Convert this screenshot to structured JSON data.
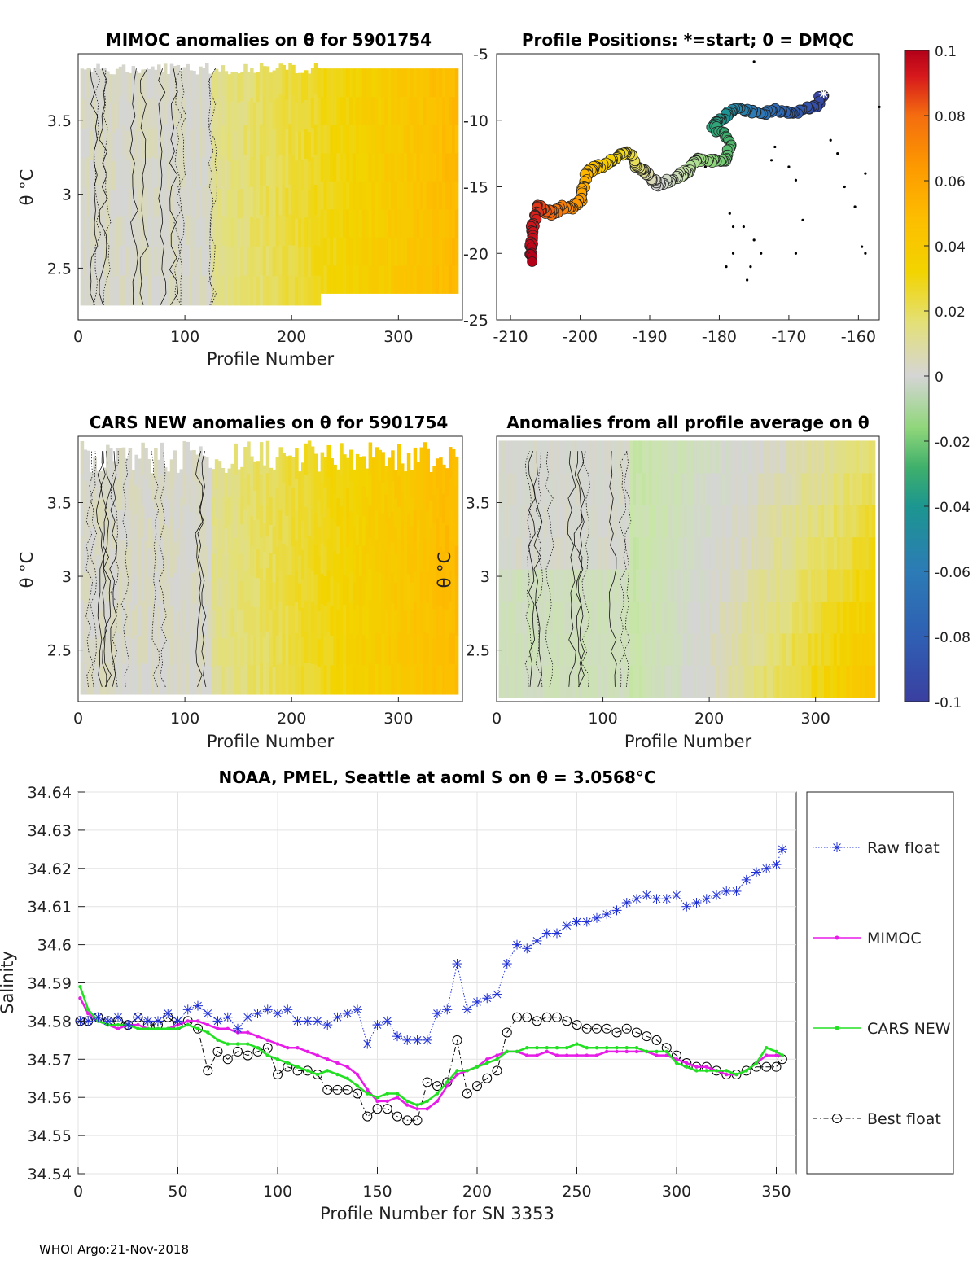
{
  "footer": "WHOI Argo:21-Nov-2018",
  "colorbar": {
    "min": -0.1,
    "max": 0.1,
    "ticks": [
      "0.1",
      "0.08",
      "0.06",
      "0.04",
      "0.02",
      "0",
      "-0.02",
      "-0.04",
      "-0.06",
      "-0.08",
      "-0.1"
    ],
    "colors": [
      "#b30019",
      "#d7191c",
      "#f46d0f",
      "#fd9a00",
      "#fdbe00",
      "#f2d400",
      "#e3e07a",
      "#d5d5d5",
      "#c9e6a8",
      "#8fd67a",
      "#3fb06b",
      "#1c9690",
      "#2c7bb6",
      "#2f5fb3",
      "#3a3fa0"
    ]
  },
  "charts": {
    "mimoc": {
      "title": "MIMOC anomalies on θ  for 5901754",
      "xlabel": "Profile Number",
      "ylabel": "θ °C",
      "xlim": [
        0,
        360
      ],
      "ylim": [
        2.15,
        3.95
      ],
      "xticks": [
        "0",
        "100",
        "200",
        "300"
      ],
      "yticks": [
        "2.5",
        "3",
        "3.5"
      ],
      "anomaly_trend": {
        "start": 0.0,
        "end": 0.045
      }
    },
    "positions": {
      "title": "Profile Positions: *=start; 0 = DMQC",
      "xlim": [
        -212,
        -157
      ],
      "ylim": [
        -25,
        -5
      ],
      "xticks": [
        "-210",
        "-200",
        "-190",
        "-180",
        "-170",
        "-160"
      ],
      "yticks": [
        "-5",
        "-10",
        "-15",
        "-20",
        "-25"
      ],
      "track": [
        [
          -165,
          -8
        ],
        [
          -166,
          -8.8
        ],
        [
          -168,
          -9.2
        ],
        [
          -170,
          -9.5
        ],
        [
          -172,
          -9.3
        ],
        [
          -174,
          -9.5
        ],
        [
          -176,
          -9.3
        ],
        [
          -178,
          -9.2
        ],
        [
          -179,
          -9.6
        ],
        [
          -180,
          -10
        ],
        [
          -181,
          -10.5
        ],
        [
          -179,
          -11
        ],
        [
          -178.5,
          -12
        ],
        [
          -179,
          -13
        ],
        [
          -181,
          -13
        ],
        [
          -183,
          -13
        ],
        [
          -184,
          -13.5
        ],
        [
          -185,
          -14
        ],
        [
          -186,
          -14.2
        ],
        [
          -187.5,
          -14.6
        ],
        [
          -189,
          -14.8
        ],
        [
          -190,
          -14.2
        ],
        [
          -191,
          -13.8
        ],
        [
          -192,
          -13.5
        ],
        [
          -192.5,
          -12.5
        ],
        [
          -194,
          -12.5
        ],
        [
          -195.5,
          -13
        ],
        [
          -197,
          -13.5
        ],
        [
          -198,
          -13.5
        ],
        [
          -199,
          -14
        ],
        [
          -199.5,
          -15
        ],
        [
          -200,
          -16
        ],
        [
          -201,
          -16.5
        ],
        [
          -202.5,
          -16.5
        ],
        [
          -204,
          -17
        ],
        [
          -205,
          -16.8
        ],
        [
          -206,
          -16.5
        ],
        [
          -206.5,
          -17.5
        ],
        [
          -207,
          -18.5
        ],
        [
          -207,
          -19.5
        ],
        [
          -207,
          -20.5
        ]
      ],
      "stations": [
        [
          -157,
          -9
        ],
        [
          -159,
          -20
        ],
        [
          -159.5,
          -19.5
        ],
        [
          -168,
          -17.5
        ],
        [
          -169,
          -20
        ],
        [
          -169,
          -14.5
        ],
        [
          -170,
          -13.5
        ],
        [
          -172,
          -12
        ],
        [
          -172.5,
          -13
        ],
        [
          -174,
          -20
        ],
        [
          -175,
          -19
        ],
        [
          -175.5,
          -21
        ],
        [
          -176,
          -22
        ],
        [
          -176.5,
          -18
        ],
        [
          -178,
          -18
        ],
        [
          -178,
          -20
        ],
        [
          -178.5,
          -17
        ],
        [
          -179,
          -21
        ],
        [
          -181,
          -13
        ],
        [
          -182,
          -13.5
        ],
        [
          -175,
          -5.6
        ],
        [
          -164,
          -11.5
        ],
        [
          -163,
          -12.5
        ],
        [
          -162,
          -15
        ],
        [
          -159,
          -14
        ],
        [
          -160.5,
          -16.5
        ]
      ]
    },
    "cars": {
      "title": "CARS NEW anomalies on θ for 5901754",
      "xlabel": "Profile Number",
      "ylabel": "θ °C",
      "xlim": [
        0,
        360
      ],
      "ylim": [
        2.15,
        3.95
      ],
      "xticks": [
        "0",
        "100",
        "200",
        "300"
      ],
      "yticks": [
        "2.5",
        "3",
        "3.5"
      ],
      "anomaly_trend": {
        "start": 0.0,
        "end": 0.045
      }
    },
    "avg": {
      "title": "Anomalies from all profile average on θ",
      "xlabel": "Profile Number",
      "ylabel": "θ °C",
      "xlim": [
        0,
        360
      ],
      "ylim": [
        2.15,
        3.95
      ],
      "xticks": [
        "0",
        "100",
        "200",
        "300"
      ],
      "yticks": [
        "2.5",
        "3",
        "3.5"
      ],
      "anomaly_trend": {
        "start": -0.015,
        "end": 0.04
      }
    }
  },
  "chart_data": {
    "type": "line",
    "title": "NOAA, PMEL, Seattle at aoml S on θ = 3.0568°C",
    "xlabel": "Profile Number for SN 3353",
    "ylabel": "Salinity",
    "xlim": [
      0,
      360
    ],
    "ylim": [
      34.54,
      34.64
    ],
    "xticks": [
      0,
      50,
      100,
      150,
      200,
      250,
      300,
      350
    ],
    "yticks": [
      "34.54",
      "34.55",
      "34.56",
      "34.57",
      "34.58",
      "34.59",
      "34.6",
      "34.61",
      "34.62",
      "34.63",
      "34.64"
    ],
    "grid": true,
    "legend_position": "right",
    "series": [
      {
        "name": "Raw float",
        "color": "#1f2fd6",
        "x": [
          1,
          5,
          10,
          15,
          20,
          25,
          30,
          35,
          40,
          45,
          50,
          55,
          60,
          65,
          70,
          75,
          80,
          85,
          90,
          95,
          100,
          105,
          110,
          115,
          120,
          125,
          130,
          135,
          140,
          145,
          150,
          155,
          160,
          165,
          170,
          175,
          180,
          185,
          190,
          195,
          200,
          205,
          210,
          215,
          220,
          225,
          230,
          235,
          240,
          245,
          250,
          255,
          260,
          265,
          270,
          275,
          280,
          285,
          290,
          295,
          300,
          305,
          310,
          315,
          320,
          325,
          330,
          335,
          340,
          345,
          350,
          353
        ],
        "values": [
          34.58,
          34.58,
          34.581,
          34.58,
          34.581,
          34.579,
          34.581,
          34.58,
          34.58,
          34.582,
          34.58,
          34.583,
          34.584,
          34.582,
          34.58,
          34.581,
          34.578,
          34.581,
          34.582,
          34.583,
          34.582,
          34.583,
          34.58,
          34.58,
          34.58,
          34.579,
          34.581,
          34.582,
          34.583,
          34.574,
          34.579,
          34.58,
          34.576,
          34.575,
          34.575,
          34.575,
          34.582,
          34.583,
          34.595,
          34.583,
          34.585,
          34.586,
          34.587,
          34.595,
          34.6,
          34.599,
          34.601,
          34.603,
          34.603,
          34.605,
          34.606,
          34.606,
          34.607,
          34.608,
          34.609,
          34.611,
          34.612,
          34.613,
          34.612,
          34.612,
          34.613,
          34.61,
          34.611,
          34.612,
          34.613,
          34.614,
          34.614,
          34.617,
          34.619,
          34.62,
          34.621,
          34.625
        ]
      },
      {
        "name": "MIMOC",
        "color": "#e81ce8",
        "x": [
          1,
          5,
          10,
          15,
          20,
          25,
          30,
          35,
          40,
          45,
          50,
          55,
          60,
          65,
          70,
          75,
          80,
          85,
          90,
          95,
          100,
          105,
          110,
          115,
          120,
          125,
          130,
          135,
          140,
          145,
          150,
          155,
          160,
          165,
          170,
          175,
          180,
          185,
          190,
          195,
          200,
          205,
          210,
          215,
          220,
          225,
          230,
          235,
          240,
          245,
          250,
          255,
          260,
          265,
          270,
          275,
          280,
          285,
          290,
          295,
          300,
          305,
          310,
          315,
          320,
          325,
          330,
          335,
          340,
          345,
          350,
          353
        ],
        "values": [
          34.586,
          34.582,
          34.58,
          34.579,
          34.578,
          34.579,
          34.579,
          34.578,
          34.578,
          34.578,
          34.579,
          34.58,
          34.58,
          34.579,
          34.578,
          34.578,
          34.577,
          34.577,
          34.576,
          34.575,
          34.574,
          34.573,
          34.573,
          34.572,
          34.571,
          34.57,
          34.569,
          34.568,
          34.566,
          34.562,
          34.559,
          34.559,
          34.56,
          34.558,
          34.557,
          34.557,
          34.559,
          34.563,
          34.566,
          34.567,
          34.568,
          34.57,
          34.571,
          34.572,
          34.572,
          34.571,
          34.571,
          34.572,
          34.571,
          34.571,
          34.571,
          34.571,
          34.571,
          34.572,
          34.572,
          34.572,
          34.572,
          34.572,
          34.571,
          34.571,
          34.57,
          34.569,
          34.568,
          34.568,
          34.567,
          34.566,
          34.566,
          34.567,
          34.569,
          34.571,
          34.571,
          34.571
        ]
      },
      {
        "name": "CARS NEW",
        "color": "#22e022",
        "x": [
          1,
          5,
          10,
          15,
          20,
          25,
          30,
          35,
          40,
          45,
          50,
          55,
          60,
          65,
          70,
          75,
          80,
          85,
          90,
          95,
          100,
          105,
          110,
          115,
          120,
          125,
          130,
          135,
          140,
          145,
          150,
          155,
          160,
          165,
          170,
          175,
          180,
          185,
          190,
          195,
          200,
          205,
          210,
          215,
          220,
          225,
          230,
          235,
          240,
          245,
          250,
          255,
          260,
          265,
          270,
          275,
          280,
          285,
          290,
          295,
          300,
          305,
          310,
          315,
          320,
          325,
          330,
          335,
          340,
          345,
          350,
          353
        ],
        "values": [
          34.589,
          34.583,
          34.58,
          34.579,
          34.579,
          34.579,
          34.578,
          34.578,
          34.578,
          34.578,
          34.578,
          34.579,
          34.578,
          34.577,
          34.575,
          34.574,
          34.574,
          34.574,
          34.573,
          34.571,
          34.57,
          34.569,
          34.568,
          34.567,
          34.566,
          34.567,
          34.566,
          34.565,
          34.563,
          34.561,
          34.56,
          34.561,
          34.561,
          34.559,
          34.558,
          34.559,
          34.561,
          34.564,
          34.567,
          34.567,
          34.568,
          34.569,
          34.57,
          34.572,
          34.572,
          34.573,
          34.573,
          34.573,
          34.573,
          34.573,
          34.574,
          34.573,
          34.573,
          34.573,
          34.573,
          34.573,
          34.573,
          34.572,
          34.572,
          34.572,
          34.569,
          34.568,
          34.567,
          34.567,
          34.567,
          34.567,
          34.566,
          34.567,
          34.569,
          34.573,
          34.572,
          34.571
        ]
      },
      {
        "name": "Best float",
        "color": "#000000",
        "x": [
          1,
          5,
          10,
          15,
          20,
          25,
          30,
          35,
          40,
          45,
          50,
          55,
          60,
          65,
          70,
          75,
          80,
          85,
          90,
          95,
          100,
          105,
          110,
          115,
          120,
          125,
          130,
          135,
          140,
          145,
          150,
          155,
          160,
          165,
          170,
          175,
          180,
          185,
          190,
          195,
          200,
          205,
          210,
          215,
          220,
          225,
          230,
          235,
          240,
          245,
          250,
          255,
          260,
          265,
          270,
          275,
          280,
          285,
          290,
          295,
          300,
          305,
          310,
          315,
          320,
          325,
          330,
          335,
          340,
          345,
          350,
          353
        ],
        "values": [
          34.58,
          34.58,
          34.581,
          34.58,
          34.58,
          34.579,
          34.581,
          34.579,
          34.579,
          34.581,
          34.579,
          34.58,
          34.578,
          34.567,
          34.572,
          34.57,
          34.572,
          34.571,
          34.572,
          34.573,
          34.566,
          34.568,
          34.567,
          34.567,
          34.566,
          34.562,
          34.562,
          34.562,
          34.561,
          34.555,
          34.557,
          34.557,
          34.555,
          34.554,
          34.554,
          34.564,
          34.563,
          34.564,
          34.575,
          34.561,
          34.563,
          34.565,
          34.567,
          34.577,
          34.581,
          34.581,
          34.58,
          34.581,
          34.581,
          34.58,
          34.579,
          34.578,
          34.578,
          34.578,
          34.577,
          34.578,
          34.577,
          34.576,
          34.575,
          34.573,
          34.571,
          34.569,
          34.568,
          34.568,
          34.567,
          34.566,
          34.566,
          34.567,
          34.568,
          34.568,
          34.568,
          34.57
        ]
      }
    ]
  }
}
